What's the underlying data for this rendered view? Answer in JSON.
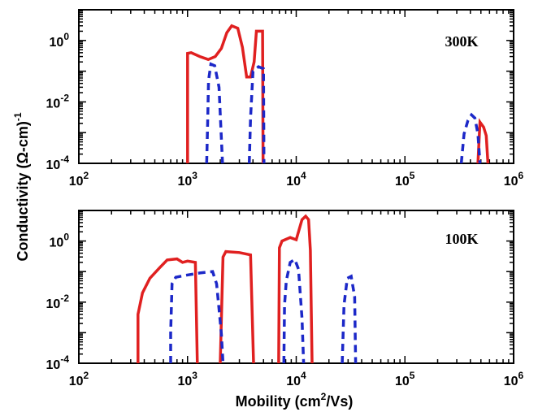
{
  "chart_data": [
    {
      "type": "line",
      "panel_label": "300K",
      "x_scale": "log",
      "y_scale": "log",
      "xlim": [
        100,
        1000000
      ],
      "ylim": [
        0.0001,
        10
      ],
      "x_ticks": [
        {
          "base": "10",
          "exp": "2",
          "value": 100
        },
        {
          "base": "10",
          "exp": "3",
          "value": 1000
        },
        {
          "base": "10",
          "exp": "4",
          "value": 10000
        },
        {
          "base": "10",
          "exp": "5",
          "value": 100000
        },
        {
          "base": "10",
          "exp": "6",
          "value": 1000000
        }
      ],
      "y_ticks": [
        {
          "base": "10",
          "exp": "0",
          "value": 1
        },
        {
          "base": "10",
          "exp": "-2",
          "value": 0.01
        },
        {
          "base": "10",
          "exp": "-4",
          "value": 0.0001
        }
      ],
      "series": [
        {
          "style": "solid",
          "color": "#e02020",
          "points": [
            [
              1000,
              0.0001
            ],
            [
              1000,
              0.38
            ],
            [
              1080,
              0.4
            ],
            [
              1300,
              0.3
            ],
            [
              1550,
              0.24
            ],
            [
              1800,
              0.3
            ],
            [
              2050,
              0.55
            ],
            [
              2300,
              1.8
            ],
            [
              2550,
              3.0
            ],
            [
              2900,
              2.5
            ],
            [
              3200,
              0.6
            ],
            [
              3500,
              0.065
            ],
            [
              3800,
              0.065
            ],
            [
              4100,
              0.2
            ],
            [
              4300,
              2.0
            ],
            [
              4900,
              2.0
            ],
            [
              4950,
              0.0001
            ]
          ]
        },
        {
          "style": "solid",
          "color": "#e02020",
          "points": [
            [
              470000,
              0.0001
            ],
            [
              490000,
              0.0022
            ],
            [
              530000,
              0.0015
            ],
            [
              560000,
              0.0008
            ],
            [
              580000,
              0.0001
            ]
          ]
        },
        {
          "style": "dashed",
          "color": "#1c28c8",
          "points": [
            [
              1500,
              0.0001
            ],
            [
              1530,
              0.002
            ],
            [
              1560,
              0.05
            ],
            [
              1640,
              0.17
            ],
            [
              1780,
              0.15
            ],
            [
              1950,
              0.03
            ],
            [
              2100,
              0.0001
            ]
          ]
        },
        {
          "style": "dashed",
          "color": "#1c28c8",
          "points": [
            [
              3700,
              0.0001
            ],
            [
              3800,
              0.003
            ],
            [
              4000,
              0.1
            ],
            [
              4500,
              0.14
            ],
            [
              5000,
              0.12
            ],
            [
              5050,
              0.0001
            ]
          ]
        },
        {
          "style": "dashed",
          "color": "#1c28c8",
          "points": [
            [
              330000,
              0.0001
            ],
            [
              350000,
              0.0009
            ],
            [
              380000,
              0.0025
            ],
            [
              410000,
              0.0038
            ],
            [
              440000,
              0.003
            ],
            [
              470000,
              0.0009
            ],
            [
              490000,
              0.0001
            ]
          ]
        }
      ]
    },
    {
      "type": "line",
      "panel_label": "100K",
      "x_scale": "log",
      "y_scale": "log",
      "xlim": [
        100,
        1000000
      ],
      "ylim": [
        0.0001,
        10
      ],
      "x_ticks": [
        {
          "base": "10",
          "exp": "2",
          "value": 100
        },
        {
          "base": "10",
          "exp": "3",
          "value": 1000
        },
        {
          "base": "10",
          "exp": "4",
          "value": 10000
        },
        {
          "base": "10",
          "exp": "5",
          "value": 100000
        },
        {
          "base": "10",
          "exp": "6",
          "value": 1000000
        }
      ],
      "y_ticks": [
        {
          "base": "10",
          "exp": "0",
          "value": 1
        },
        {
          "base": "10",
          "exp": "-2",
          "value": 0.01
        },
        {
          "base": "10",
          "exp": "-4",
          "value": 0.0001
        }
      ],
      "series": [
        {
          "style": "solid",
          "color": "#e02020",
          "points": [
            [
              350,
              0.0001
            ],
            [
              350,
              0.004
            ],
            [
              385,
              0.02
            ],
            [
              450,
              0.06
            ],
            [
              550,
              0.13
            ],
            [
              650,
              0.24
            ],
            [
              800,
              0.26
            ],
            [
              900,
              0.2
            ],
            [
              1000,
              0.22
            ],
            [
              1180,
              0.2
            ],
            [
              1230,
              0.0001
            ]
          ]
        },
        {
          "style": "solid",
          "color": "#e02020",
          "points": [
            [
              2000,
              0.0001
            ],
            [
              2120,
              0.3
            ],
            [
              2250,
              0.45
            ],
            [
              3000,
              0.42
            ],
            [
              3800,
              0.35
            ],
            [
              4050,
              0.0001
            ]
          ]
        },
        {
          "style": "solid",
          "color": "#e02020",
          "points": [
            [
              6900,
              0.0001
            ],
            [
              7000,
              0.6
            ],
            [
              7400,
              1.0
            ],
            [
              8800,
              1.3
            ],
            [
              10000,
              1.1
            ],
            [
              11300,
              5.0
            ],
            [
              12200,
              6.5
            ],
            [
              13000,
              5.0
            ],
            [
              13500,
              0.5
            ],
            [
              14000,
              0.0001
            ]
          ]
        },
        {
          "style": "dashed",
          "color": "#1c28c8",
          "points": [
            [
              700,
              0.0001
            ],
            [
              700,
              0.001
            ],
            [
              720,
              0.04
            ],
            [
              780,
              0.065
            ],
            [
              950,
              0.075
            ],
            [
              1300,
              0.09
            ],
            [
              1700,
              0.1
            ],
            [
              1850,
              0.04
            ],
            [
              1950,
              0.006
            ],
            [
              2050,
              0.0009
            ],
            [
              2120,
              0.0001
            ]
          ]
        },
        {
          "style": "dashed",
          "color": "#1c28c8",
          "points": [
            [
              7700,
              0.0001
            ],
            [
              7800,
              0.008
            ],
            [
              8100,
              0.05
            ],
            [
              8800,
              0.2
            ],
            [
              9700,
              0.25
            ],
            [
              10500,
              0.12
            ],
            [
              11300,
              0.003
            ],
            [
              11700,
              0.0001
            ]
          ]
        },
        {
          "style": "dashed",
          "color": "#1c28c8",
          "points": [
            [
              26500,
              0.0001
            ],
            [
              27500,
              0.008
            ],
            [
              29500,
              0.06
            ],
            [
              32000,
              0.07
            ],
            [
              34500,
              0.015
            ],
            [
              35200,
              0.0001
            ]
          ]
        }
      ]
    }
  ],
  "y_axis_title": "Conductivity  (Ω-cm)",
  "y_axis_title_sup": "-1",
  "x_axis_title_pre": "Mobility (cm",
  "x_axis_title_sup": "2",
  "x_axis_title_post": "/Vs)"
}
